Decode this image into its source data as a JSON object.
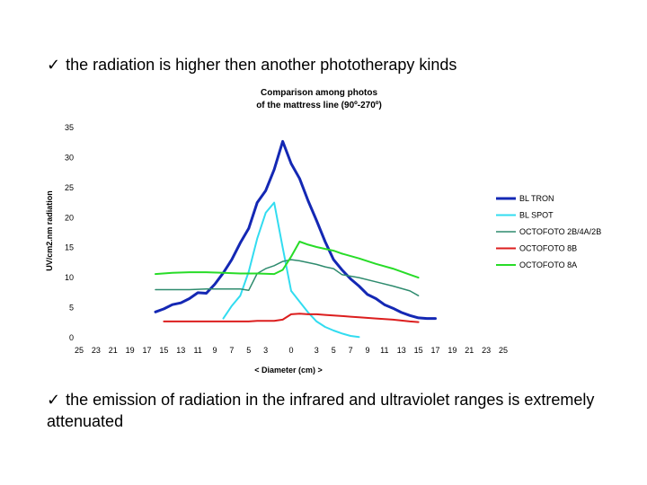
{
  "bullets": {
    "first": "the radiation is higher then another phototherapy kinds",
    "second": "the emission of radiation in the infrared and ultraviolet ranges is extremely attenuated",
    "check_glyph": "✓"
  },
  "chart_data": {
    "type": "line",
    "title_line1": "Comparison among photos",
    "title_line2": "of the mattress line (90º-270º)",
    "xlabel": "< Diameter (cm) >",
    "ylabel": "UV/cm2.nm radiation",
    "ylim": [
      0,
      35
    ],
    "yticks": [
      0,
      5,
      10,
      15,
      20,
      25,
      30,
      35
    ],
    "xlim": [
      -25,
      25
    ],
    "x_ticks": [
      -25,
      -23,
      -21,
      -19,
      -17,
      -15,
      -13,
      -11,
      -9,
      -7,
      -5,
      -3,
      0,
      3,
      5,
      7,
      9,
      11,
      13,
      15,
      17,
      19,
      21,
      23,
      25
    ],
    "x_tick_labels": [
      "25",
      "23",
      "21",
      "19",
      "17",
      "15",
      "13",
      "11",
      "9",
      "7",
      "5",
      "3",
      "0",
      "3",
      "5",
      "7",
      "9",
      "11",
      "13",
      "15",
      "17",
      "19",
      "21",
      "23",
      "25"
    ],
    "grid": false,
    "legend_position": "right",
    "series": [
      {
        "name": "BL TRON",
        "color": "#1428b4",
        "width": 3,
        "x": [
          -16,
          -15,
          -14,
          -13,
          -12,
          -11,
          -10,
          -9,
          -8,
          -7,
          -6,
          -5,
          -4,
          -3,
          -2,
          -1,
          0,
          1,
          2,
          3,
          4,
          5,
          6,
          7,
          8,
          9,
          10,
          11,
          12,
          13,
          14,
          15,
          16,
          17
        ],
        "y": [
          4.3,
          4.8,
          5.5,
          5.8,
          6.5,
          7.5,
          7.4,
          8.9,
          10.8,
          13,
          15.8,
          18.2,
          22.5,
          24.5,
          28,
          32.7,
          29,
          26.5,
          22.8,
          19.5,
          16,
          13,
          11.3,
          9.8,
          8.6,
          7.2,
          6.5,
          5.5,
          4.9,
          4.2,
          3.7,
          3.3,
          3.2,
          3.2
        ]
      },
      {
        "name": "BL SPOT",
        "color": "#32dcf0",
        "width": 2,
        "x": [
          -8,
          -7,
          -6,
          -5,
          -4,
          -3,
          -2,
          -1,
          0,
          1,
          2,
          3,
          4,
          5,
          6,
          7,
          8
        ],
        "y": [
          3.2,
          5.3,
          7,
          11,
          16.5,
          20.8,
          22.5,
          15,
          7.8,
          6,
          4.2,
          2.7,
          1.8,
          1.2,
          0.7,
          0.3,
          0.1
        ]
      },
      {
        "name": "OCTOFOTO 2B/4A/2B",
        "color": "#2e8b6e",
        "width": 1.5,
        "x": [
          -16,
          -14,
          -12,
          -10,
          -8,
          -6,
          -5,
          -4,
          -3,
          -2,
          -1,
          0,
          1,
          2,
          3,
          4,
          5,
          6,
          8,
          10,
          12,
          14,
          15
        ],
        "y": [
          8,
          8,
          8,
          8.1,
          8.1,
          8.1,
          7.9,
          10.7,
          11.5,
          12,
          12.7,
          13,
          12.8,
          12.5,
          12.2,
          11.8,
          11.5,
          10.5,
          10,
          9.3,
          8.6,
          7.8,
          7
        ]
      },
      {
        "name": "OCTOFOTO 8B",
        "color": "#dc1e1e",
        "width": 2,
        "x": [
          -15,
          -13,
          -11,
          -9,
          -7,
          -5,
          -4,
          -3,
          -2,
          -1,
          0,
          1,
          2,
          3,
          4,
          5,
          6,
          7,
          8,
          10,
          12,
          14,
          15
        ],
        "y": [
          2.7,
          2.7,
          2.7,
          2.7,
          2.7,
          2.7,
          2.8,
          2.8,
          2.8,
          3,
          3.9,
          4,
          3.9,
          3.9,
          3.8,
          3.7,
          3.6,
          3.5,
          3.4,
          3.2,
          3,
          2.7,
          2.6
        ]
      },
      {
        "name": "OCTOFOTO 8A",
        "color": "#28dc28",
        "width": 2,
        "x": [
          -16,
          -14,
          -12,
          -10,
          -8,
          -6,
          -4,
          -2,
          -1,
          0,
          1,
          2,
          3,
          4,
          5,
          6,
          8,
          10,
          12,
          14,
          15
        ],
        "y": [
          10.6,
          10.8,
          10.9,
          10.9,
          10.8,
          10.7,
          10.7,
          10.6,
          11.3,
          13.5,
          16,
          15.5,
          15.1,
          14.8,
          14.5,
          14,
          13.2,
          12.3,
          11.5,
          10.5,
          10
        ]
      }
    ]
  }
}
